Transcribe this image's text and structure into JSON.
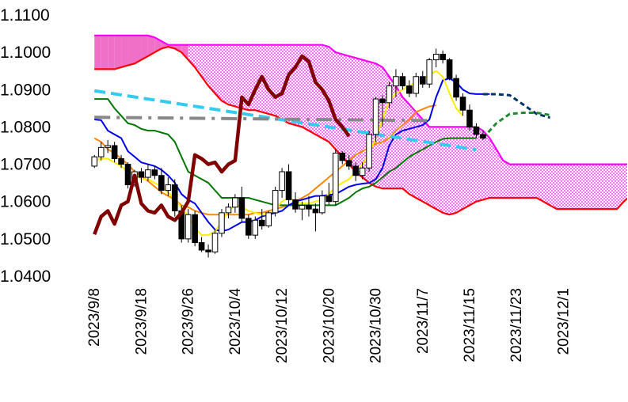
{
  "chart_data": {
    "type": "candlestick",
    "y_ticks": [
      "1.0400",
      "1.0500",
      "1.0600",
      "1.0700",
      "1.0800",
      "1.0900",
      "1.1000",
      "1.1100"
    ],
    "ylim": [
      1.04,
      1.11
    ],
    "x_tick_labels": [
      "2023/9/8",
      "2023/9/18",
      "2023/9/26",
      "2023/10/4",
      "2023/10/12",
      "2023/10/20",
      "2023/10/30",
      "2023/11/7",
      "2023/11/15",
      "2023/11/23",
      "2023/12/1"
    ],
    "legend": "none",
    "grid": false,
    "colors": {
      "cloud_fill": "#ff00ff",
      "cloud_fill_thick": "#f070c8",
      "span_a": "#ff00ff",
      "span_b": "#ff0000",
      "conversion": "#0000ee",
      "base": "#007700",
      "ma_short": "#ffee00",
      "ma_long": "#ff8800",
      "lagging": "#800000",
      "trend1": "#33ccee",
      "trend2": "#888888",
      "forecast": "#003366",
      "forecast2": "#228833"
    },
    "candles": [
      [
        1.0695,
        1.0725,
        1.069,
        1.072
      ],
      [
        1.072,
        1.076,
        1.071,
        1.0745
      ],
      [
        1.0745,
        1.0765,
        1.073,
        1.075
      ],
      [
        1.075,
        1.076,
        1.0705,
        1.0715
      ],
      [
        1.0715,
        1.0725,
        1.069,
        1.07
      ],
      [
        1.07,
        1.0705,
        1.0635,
        1.0645
      ],
      [
        1.0645,
        1.0685,
        1.064,
        1.068
      ],
      [
        1.068,
        1.069,
        1.065,
        1.0665
      ],
      [
        1.0665,
        1.07,
        1.0655,
        1.0685
      ],
      [
        1.0685,
        1.0695,
        1.066,
        1.067
      ],
      [
        1.067,
        1.069,
        1.062,
        1.063
      ],
      [
        1.063,
        1.0665,
        1.0615,
        1.0645
      ],
      [
        1.0645,
        1.066,
        1.056,
        1.0575
      ],
      [
        1.0575,
        1.059,
        1.049,
        1.05
      ],
      [
        1.05,
        1.058,
        1.049,
        1.0565
      ],
      [
        1.0565,
        1.0575,
        1.048,
        1.049
      ],
      [
        1.049,
        1.0505,
        1.0465,
        1.047
      ],
      [
        1.047,
        1.0485,
        1.045,
        1.0465
      ],
      [
        1.0465,
        1.0525,
        1.046,
        1.0515
      ],
      [
        1.0515,
        1.058,
        1.0505,
        1.057
      ],
      [
        1.057,
        1.0595,
        1.0555,
        1.0585
      ],
      [
        1.0585,
        1.062,
        1.057,
        1.061
      ],
      [
        1.061,
        1.064,
        1.0545,
        1.0555
      ],
      [
        1.0555,
        1.0565,
        1.05,
        1.051
      ],
      [
        1.051,
        1.056,
        1.05,
        1.055
      ],
      [
        1.055,
        1.058,
        1.0525,
        1.0535
      ],
      [
        1.0535,
        1.0575,
        1.053,
        1.057
      ],
      [
        1.057,
        1.064,
        1.056,
        1.063
      ],
      [
        1.063,
        1.069,
        1.061,
        1.068
      ],
      [
        1.068,
        1.07,
        1.059,
        1.0605
      ],
      [
        1.0605,
        1.0625,
        1.057,
        1.058
      ],
      [
        1.058,
        1.06,
        1.055,
        1.059
      ],
      [
        1.059,
        1.0615,
        1.056,
        1.058
      ],
      [
        1.058,
        1.0595,
        1.052,
        1.057
      ],
      [
        1.057,
        1.063,
        1.0565,
        1.0615
      ],
      [
        1.0615,
        1.065,
        1.059,
        1.06
      ],
      [
        1.06,
        1.074,
        1.059,
        1.073
      ],
      [
        1.073,
        1.0735,
        1.07,
        1.071
      ],
      [
        1.071,
        1.0725,
        1.0685,
        1.0695
      ],
      [
        1.0695,
        1.0705,
        1.0655,
        1.067
      ],
      [
        1.067,
        1.0705,
        1.066,
        1.069
      ],
      [
        1.069,
        1.079,
        1.068,
        1.078
      ],
      [
        1.078,
        1.088,
        1.076,
        1.0875
      ],
      [
        1.0875,
        1.0885,
        1.08,
        1.0865
      ],
      [
        1.0865,
        1.092,
        1.085,
        1.091
      ],
      [
        1.091,
        1.0955,
        1.088,
        1.0935
      ],
      [
        1.0935,
        1.0945,
        1.09,
        1.091
      ],
      [
        1.091,
        1.0925,
        1.088,
        1.089
      ],
      [
        1.089,
        1.0945,
        1.088,
        1.0935
      ],
      [
        1.0935,
        1.095,
        1.0905,
        1.0915
      ],
      [
        1.0915,
        1.0985,
        1.0905,
        1.098
      ],
      [
        1.098,
        1.101,
        1.096,
        1.0995
      ],
      [
        1.0995,
        1.1005,
        1.097,
        1.098
      ],
      [
        1.098,
        1.0985,
        1.0925,
        1.093
      ],
      [
        1.093,
        1.094,
        1.087,
        1.088
      ],
      [
        1.088,
        1.089,
        1.083,
        1.0845
      ],
      [
        1.0845,
        1.086,
        1.079,
        1.08
      ],
      [
        1.08,
        1.081,
        1.077,
        1.078
      ],
      [
        1.078,
        1.079,
        1.0765,
        1.077
      ]
    ],
    "series": [
      {
        "values": [
          1.082,
          1.0818,
          1.079,
          1.078,
          1.077,
          1.0735,
          1.072,
          1.0705,
          1.07,
          1.0695,
          1.0685,
          1.067,
          1.065,
          1.062,
          1.0605,
          1.0595,
          1.057,
          1.0545,
          1.0525,
          1.052,
          1.0525,
          1.0535,
          1.0545,
          1.0545,
          1.055,
          1.056,
          1.0565,
          1.057,
          1.0575,
          1.059,
          1.06,
          1.0605,
          1.061,
          1.0615,
          1.0615,
          1.0618,
          1.062,
          1.063,
          1.064,
          1.0645,
          1.0648,
          1.065,
          1.066,
          1.069,
          1.075,
          1.078,
          1.079,
          1.0795,
          1.08,
          1.0805,
          1.082,
          1.088,
          1.0925,
          1.093,
          1.092,
          1.09,
          1.089,
          1.0888,
          1.0888,
          1.0888
        ]
      },
      {
        "values": [
          1.0875,
          1.0875,
          1.0875,
          1.085,
          1.083,
          1.081,
          1.0805,
          1.0795,
          1.079,
          1.079,
          1.0785,
          1.078,
          1.076,
          1.072,
          1.068,
          1.067,
          1.066,
          1.065,
          1.063,
          1.061,
          1.061,
          1.061,
          1.061,
          1.061,
          1.0605,
          1.06,
          1.0595,
          1.059,
          1.059,
          1.059,
          1.059,
          1.059,
          1.059,
          1.059,
          1.059,
          1.059,
          1.059,
          1.06,
          1.061,
          1.0625,
          1.0635,
          1.064,
          1.065,
          1.0665,
          1.068,
          1.069,
          1.0705,
          1.072,
          1.073,
          1.074,
          1.075,
          1.076,
          1.0768,
          1.077,
          1.077,
          1.077,
          1.077,
          1.077
        ]
      },
      {
        "values": [
          1.071,
          1.0715,
          1.0715,
          1.0705,
          1.0695,
          1.068,
          1.0675,
          1.066,
          1.066,
          1.065,
          1.064,
          1.0625,
          1.0605,
          1.0585,
          1.056,
          1.053,
          1.051,
          1.051,
          1.052,
          1.0545,
          1.0575,
          1.059,
          1.0585,
          1.0575,
          1.057,
          1.0565,
          1.0565,
          1.058,
          1.06,
          1.061,
          1.06,
          1.0595,
          1.0595,
          1.06,
          1.0605,
          1.062,
          1.064,
          1.065,
          1.066,
          1.068,
          1.07,
          1.073,
          1.077,
          1.082,
          1.087,
          1.089,
          1.09,
          1.091,
          1.092,
          1.093,
          1.094,
          1.095,
          1.0935,
          1.089,
          1.085,
          1.083
        ]
      },
      {
        "values": [
          1.077,
          1.076,
          1.074,
          1.073,
          1.0715,
          1.07,
          1.068,
          1.067,
          1.0655,
          1.064,
          1.0625,
          1.0615,
          1.0605,
          1.059,
          1.0585,
          1.0575,
          1.057,
          1.0565,
          1.0565,
          1.0565,
          1.0565,
          1.0565,
          1.0565,
          1.0565,
          1.057,
          1.057,
          1.0575,
          1.058,
          1.0585,
          1.059,
          1.06,
          1.061,
          1.062,
          1.0635,
          1.065,
          1.0665,
          1.068,
          1.0695,
          1.071,
          1.0725,
          1.0735,
          1.0745,
          1.0755,
          1.076,
          1.077,
          1.079,
          1.0805,
          1.082,
          1.084,
          1.0848,
          1.0855,
          1.0858
        ]
      },
      {
        "values": [
          1.0512,
          1.056,
          1.0575,
          1.054,
          1.059,
          1.06,
          1.067,
          1.0595,
          1.0575,
          1.057,
          1.059,
          1.056,
          1.055,
          1.057,
          1.06,
          1.0725,
          1.0715,
          1.07,
          1.0705,
          1.068,
          1.07,
          1.071,
          1.088,
          1.086,
          1.09,
          1.0935,
          1.09,
          1.088,
          1.089,
          1.094,
          1.096,
          1.099,
          1.0975,
          1.092,
          1.09,
          1.087,
          1.082,
          1.08,
          1.0775
        ]
      },
      {
        "values": [
          1.0897,
          1.0739
        ]
      },
      {
        "values": [
          1.0826,
          1.0817
        ]
      }
    ],
    "cloud": {
      "span_a": [
        1.1045,
        1.1045,
        1.1045,
        1.1045,
        1.1045,
        1.1045,
        1.1045,
        1.1045,
        1.1045,
        1.104,
        1.103,
        1.102,
        1.102,
        1.102,
        1.102,
        1.102,
        1.102,
        1.102,
        1.102,
        1.102,
        1.102,
        1.102,
        1.102,
        1.102,
        1.102,
        1.102,
        1.102,
        1.102,
        1.102,
        1.102,
        1.102,
        1.102,
        1.102,
        1.102,
        1.102,
        1.1015,
        1.1,
        1.0995,
        1.099,
        1.0985,
        1.098,
        1.0975,
        1.097,
        1.096,
        1.0935,
        1.091,
        1.088,
        1.086,
        1.084,
        1.082,
        1.08,
        1.08,
        1.08,
        1.08,
        1.08,
        1.08,
        1.08,
        1.08,
        1.079,
        1.077,
        1.074,
        1.071,
        1.07,
        1.07,
        1.07,
        1.07,
        1.07,
        1.07,
        1.07,
        1.07,
        1.07,
        1.07,
        1.07,
        1.07,
        1.07,
        1.07,
        1.07,
        1.07,
        1.07,
        1.07,
        1.07,
        1.07,
        1.07,
        1.07,
        1.07,
        1.07
      ],
      "span_b": [
        1.0955,
        1.0955,
        1.0955,
        1.0955,
        1.096,
        1.0965,
        1.097,
        1.098,
        1.099,
        1.1,
        1.101,
        1.1015,
        1.101,
        1.1,
        1.098,
        1.096,
        1.0935,
        1.091,
        1.089,
        1.087,
        1.086,
        1.0855,
        1.085,
        1.0845,
        1.0845,
        1.084,
        1.0835,
        1.083,
        1.082,
        1.081,
        1.0805,
        1.08,
        1.079,
        1.078,
        1.077,
        1.076,
        1.074,
        1.072,
        1.07,
        1.068,
        1.0665,
        1.065,
        1.064,
        1.0635,
        1.0635,
        1.0635,
        1.0635,
        1.062,
        1.061,
        1.06,
        1.059,
        1.058,
        1.057,
        1.0565,
        1.057,
        1.058,
        1.059,
        1.06,
        1.0605,
        1.061,
        1.061,
        1.061,
        1.061,
        1.061,
        1.061,
        1.061,
        1.061,
        1.06,
        1.059,
        1.058,
        1.058,
        1.058,
        1.058,
        1.058,
        1.058,
        1.058,
        1.058,
        1.058,
        1.058,
        1.06,
        1.0615,
        1.062,
        1.062,
        1.062,
        1.0625,
        1.063
      ]
    }
  }
}
